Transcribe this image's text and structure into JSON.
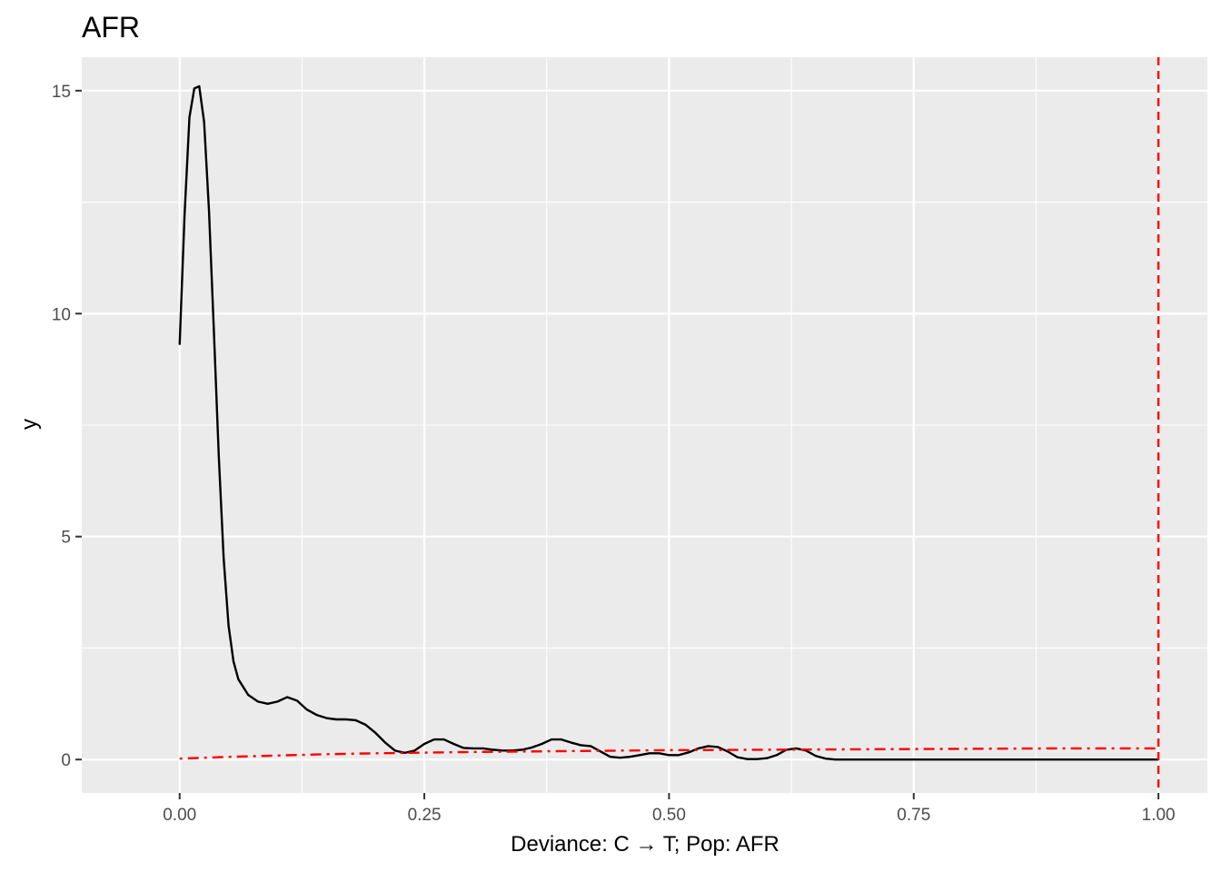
{
  "chart_data": {
    "type": "line",
    "title": "AFR",
    "xlabel": "Deviance: C → T; Pop: AFR",
    "ylabel": "y",
    "xlim": [
      -0.1,
      1.05
    ],
    "ylim": [
      -0.75,
      15.75
    ],
    "x_ticks": [
      0.0,
      0.25,
      0.5,
      0.75,
      1.0
    ],
    "x_tick_labels": [
      "0.00",
      "0.25",
      "0.50",
      "0.75",
      "1.00"
    ],
    "y_ticks": [
      0,
      5,
      10,
      15
    ],
    "y_tick_labels": [
      "0",
      "5",
      "10",
      "15"
    ],
    "grid": true,
    "legend": "none",
    "colors": {
      "panel": "#ebebeb",
      "grid": "#ffffff",
      "density": "#000000",
      "reference": "#ff0000",
      "axis_text": "#4d4d4d"
    },
    "series": [
      {
        "style": "solid",
        "color": "#000000",
        "x": [
          0.0,
          0.005,
          0.01,
          0.015,
          0.02,
          0.025,
          0.03,
          0.035,
          0.04,
          0.045,
          0.05,
          0.055,
          0.06,
          0.07,
          0.08,
          0.09,
          0.1,
          0.11,
          0.12,
          0.13,
          0.14,
          0.15,
          0.16,
          0.17,
          0.18,
          0.19,
          0.2,
          0.21,
          0.22,
          0.23,
          0.24,
          0.25,
          0.26,
          0.27,
          0.28,
          0.29,
          0.3,
          0.31,
          0.32,
          0.33,
          0.34,
          0.35,
          0.36,
          0.37,
          0.38,
          0.39,
          0.4,
          0.41,
          0.42,
          0.43,
          0.44,
          0.45,
          0.46,
          0.47,
          0.48,
          0.49,
          0.5,
          0.51,
          0.52,
          0.53,
          0.54,
          0.55,
          0.56,
          0.57,
          0.58,
          0.59,
          0.6,
          0.61,
          0.62,
          0.63,
          0.64,
          0.65,
          0.66,
          0.67,
          0.68,
          0.69,
          0.7,
          0.71,
          0.72,
          0.75,
          0.8,
          0.85,
          0.9,
          0.95,
          1.0
        ],
        "y": [
          9.3,
          12.2,
          14.4,
          15.05,
          15.1,
          14.3,
          12.3,
          9.6,
          6.8,
          4.5,
          3.0,
          2.2,
          1.8,
          1.45,
          1.3,
          1.25,
          1.3,
          1.4,
          1.32,
          1.12,
          1.0,
          0.93,
          0.9,
          0.9,
          0.88,
          0.78,
          0.6,
          0.38,
          0.2,
          0.15,
          0.2,
          0.35,
          0.45,
          0.45,
          0.35,
          0.26,
          0.25,
          0.25,
          0.22,
          0.2,
          0.2,
          0.22,
          0.27,
          0.35,
          0.45,
          0.45,
          0.38,
          0.32,
          0.3,
          0.18,
          0.06,
          0.04,
          0.06,
          0.1,
          0.14,
          0.14,
          0.1,
          0.1,
          0.16,
          0.25,
          0.3,
          0.28,
          0.18,
          0.05,
          0.01,
          0.01,
          0.03,
          0.1,
          0.22,
          0.25,
          0.2,
          0.08,
          0.02,
          0.0,
          0.0,
          0.0,
          0.0,
          0.0,
          0.0,
          0.0,
          0.0,
          0.0,
          0.0,
          0.0,
          0.0
        ]
      },
      {
        "style": "dotdash",
        "color": "#ff0000",
        "x": [
          0.0,
          0.05,
          0.1,
          0.15,
          0.2,
          0.3,
          0.4,
          0.5,
          0.6,
          0.7,
          0.8,
          0.9,
          1.0
        ],
        "y": [
          0.02,
          0.06,
          0.09,
          0.12,
          0.14,
          0.17,
          0.19,
          0.21,
          0.22,
          0.23,
          0.24,
          0.25,
          0.25
        ]
      }
    ],
    "vlines": [
      {
        "x": 1.0,
        "style": "dashed",
        "color": "#ff0000"
      }
    ]
  }
}
